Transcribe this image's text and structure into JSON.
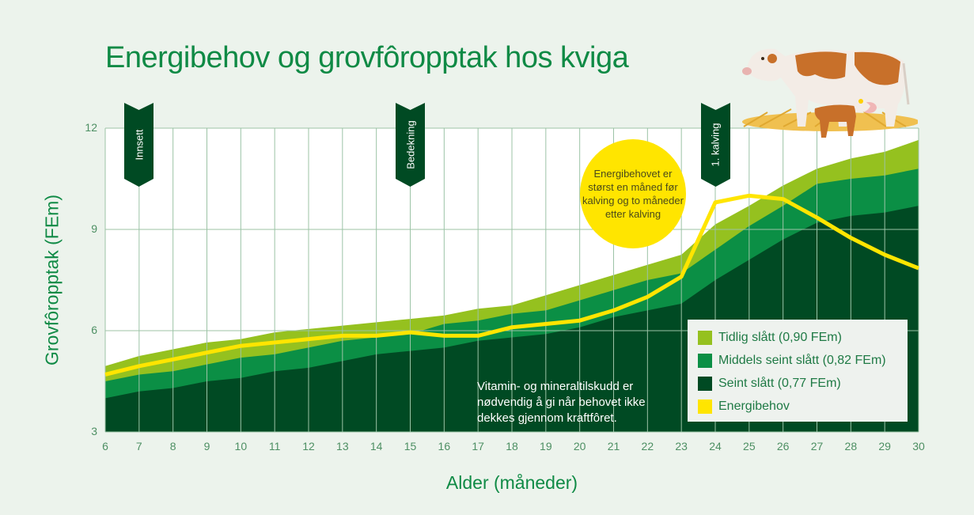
{
  "title": "Energibehov og grovfôropptak hos kviga",
  "colors": {
    "background": "#ecf3ec",
    "plot_background": "#ffffff",
    "grid": "#9cc3a6",
    "title_green": "#0f8a45",
    "tidlig": "#95c11f",
    "middels": "#0b8f45",
    "seint": "#004a23",
    "energibehov": "#ffe500",
    "marker": "#004a23"
  },
  "axes": {
    "ylabel": "Grovfôropptak (FEm)",
    "xlabel": "Alder (måneder)",
    "yticks": [
      "12",
      "9",
      "6",
      "3"
    ],
    "xticks": [
      "6",
      "7",
      "8",
      "9",
      "10",
      "11",
      "12",
      "13",
      "14",
      "15",
      "16",
      "17",
      "18",
      "19",
      "20",
      "21",
      "22",
      "23",
      "24",
      "25",
      "26",
      "27",
      "28",
      "29",
      "30"
    ]
  },
  "markers": [
    {
      "label": "Innsett",
      "month": 7
    },
    {
      "label": "Bedekning",
      "month": 15
    },
    {
      "label": "1. kalving",
      "month": 24
    }
  ],
  "callout": "Energibehovet er størst en måned før kalving og to måneder etter kalving",
  "note": "Vitamin- og mineraltilskudd er nødvendig å gi når behovet ikke dekkes gjennom kraftfôret.",
  "legend": [
    {
      "label": "Tidlig slått (0,90 FEm)",
      "color": "#95c11f"
    },
    {
      "label": "Middels seint slått (0,82 FEm)",
      "color": "#0b8f45"
    },
    {
      "label": "Seint slått (0,77 FEm)",
      "color": "#004a23"
    },
    {
      "label": "Energibehov",
      "color": "#ffe500"
    }
  ],
  "illustration": "cow-and-calf-on-straw",
  "chart_data": {
    "type": "area",
    "title": "Energibehov og grovfôropptak hos kviga",
    "xlabel": "Alder (måneder)",
    "ylabel": "Grovfôropptak (FEm)",
    "xlim": [
      6,
      30
    ],
    "ylim": [
      3,
      12
    ],
    "yticks": [
      3,
      6,
      9,
      12
    ],
    "grid": true,
    "legend_position": "lower right",
    "x": [
      6,
      7,
      8,
      9,
      10,
      11,
      12,
      13,
      14,
      15,
      16,
      17,
      18,
      19,
      20,
      21,
      22,
      23,
      24,
      25,
      26,
      27,
      28,
      29,
      30
    ],
    "series": [
      {
        "name": "Tidlig slått (0,90 FEm)",
        "type": "area",
        "values": [
          4.95,
          5.25,
          5.45,
          5.65,
          5.75,
          5.95,
          6.05,
          6.15,
          6.25,
          6.35,
          6.45,
          6.65,
          6.75,
          7.05,
          7.35,
          7.65,
          7.95,
          8.25,
          9.15,
          9.7,
          10.3,
          10.8,
          11.1,
          11.3,
          11.65
        ]
      },
      {
        "name": "Middels seint slått (0,82 FEm)",
        "type": "area",
        "values": [
          4.5,
          4.7,
          4.8,
          5.0,
          5.2,
          5.3,
          5.5,
          5.7,
          5.8,
          5.9,
          6.2,
          6.3,
          6.5,
          6.6,
          6.9,
          7.2,
          7.5,
          7.7,
          8.4,
          9.1,
          9.7,
          10.35,
          10.5,
          10.6,
          10.8
        ]
      },
      {
        "name": "Seint slått (0,77 FEm)",
        "type": "area",
        "values": [
          4.0,
          4.2,
          4.3,
          4.5,
          4.6,
          4.8,
          4.9,
          5.1,
          5.3,
          5.4,
          5.5,
          5.7,
          5.8,
          5.9,
          6.1,
          6.4,
          6.6,
          6.8,
          7.5,
          8.1,
          8.7,
          9.2,
          9.4,
          9.5,
          9.7
        ]
      },
      {
        "name": "Energibehov",
        "type": "line",
        "values": [
          4.7,
          4.95,
          5.15,
          5.35,
          5.55,
          5.65,
          5.75,
          5.85,
          5.85,
          5.95,
          5.85,
          5.85,
          6.1,
          6.2,
          6.3,
          6.6,
          7.0,
          7.6,
          9.8,
          10.0,
          9.9,
          9.35,
          8.75,
          8.25,
          7.85
        ]
      }
    ],
    "annotations": [
      {
        "x": 7,
        "text": "Innsett"
      },
      {
        "x": 15,
        "text": "Bedekning"
      },
      {
        "x": 24,
        "text": "1. kalving"
      },
      {
        "text": "Energibehovet er størst en måned før kalving og to måneder etter kalving"
      },
      {
        "text": "Vitamin- og mineraltilskudd er nødvendig å gi når behovet ikke dekkes gjennom kraftfôret."
      }
    ]
  }
}
